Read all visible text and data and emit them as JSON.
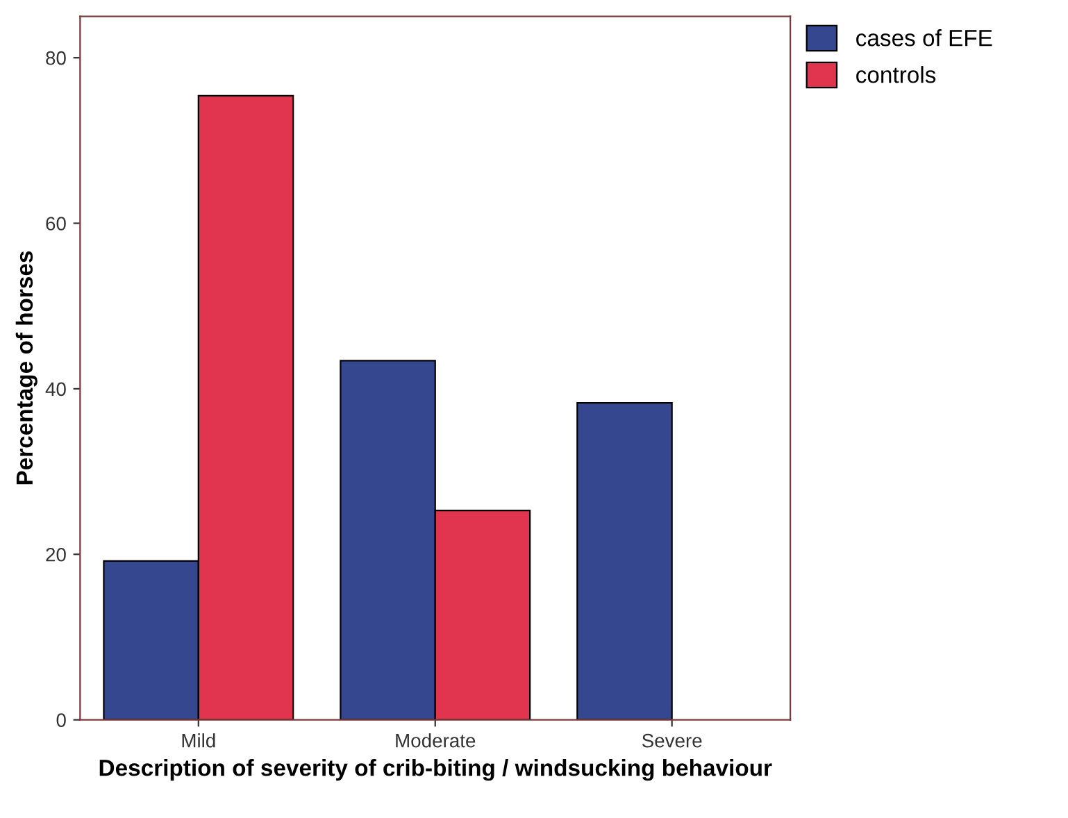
{
  "chart_data": {
    "type": "bar",
    "xlabel": "Description of severity of crib-biting / windsucking behaviour",
    "ylabel": "Percentage of horses",
    "categories": [
      "Mild",
      "Moderate",
      "Severe"
    ],
    "series": [
      {
        "name": "cases of EFE",
        "color": "#34478f",
        "values": [
          19.2,
          43.4,
          38.3
        ]
      },
      {
        "name": "controls",
        "color": "#e0344f",
        "values": [
          75.4,
          25.3,
          null
        ]
      }
    ],
    "ylim": [
      0,
      85
    ],
    "yticks": [
      0,
      20,
      40,
      60,
      80
    ],
    "grid": false,
    "legend": "top right"
  }
}
